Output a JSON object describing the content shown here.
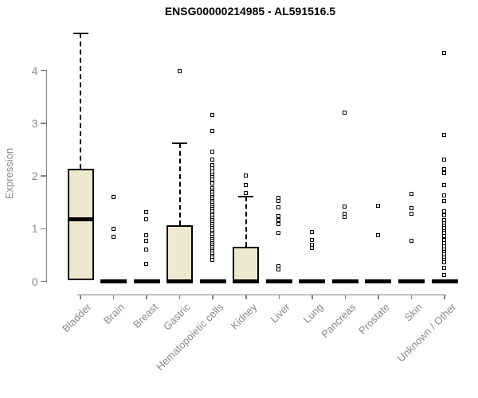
{
  "chart_data": {
    "type": "boxplot",
    "title": "ENSG00000214985 - AL591516.5",
    "ylabel": "Expression",
    "xlabel": "",
    "ylim": [
      0,
      4.75
    ],
    "yticks": [
      0,
      1,
      2,
      3,
      4
    ],
    "grid": false,
    "legend": "none",
    "colors": {
      "box_fill": "#EDE8D0",
      "box_border": "#000000",
      "axis": "#808080",
      "tick_text": "#8a8a8a",
      "title_text": "#000000",
      "outlier_border": "#000000",
      "outlier_fill": "#ffffff"
    },
    "categories": [
      "Bladder",
      "Brain",
      "Breast",
      "Gastric",
      "Hematopoietic cells",
      "Kidney",
      "Liver",
      "Lung",
      "Pancreas",
      "Prostate",
      "Skin",
      "Unknown / Other"
    ],
    "boxes": [
      {
        "label": "Bladder",
        "q1": 0.02,
        "median": 1.18,
        "q3": 2.13,
        "whisker_low": 0.02,
        "whisker_high": 4.7,
        "outliers": []
      },
      {
        "label": "Brain",
        "q1": 0,
        "median": 0,
        "q3": 0,
        "whisker_low": 0,
        "whisker_high": 0,
        "outliers": [
          1.59,
          0.99,
          0.84
        ]
      },
      {
        "label": "Breast",
        "q1": 0,
        "median": 0,
        "q3": 0,
        "whisker_low": 0,
        "whisker_high": 0,
        "outliers": [
          1.31,
          1.17,
          0.87,
          0.76,
          0.6,
          0.32
        ]
      },
      {
        "label": "Gastric",
        "q1": 0,
        "median": 0.02,
        "q3": 1.06,
        "whisker_low": 0,
        "whisker_high": 2.62,
        "outliers": [
          3.97
        ]
      },
      {
        "label": "Hematopoietic cells",
        "q1": 0,
        "median": 0,
        "q3": 0,
        "whisker_low": 0,
        "whisker_high": 0,
        "outliers": [
          3.15,
          2.85,
          2.45,
          2.3,
          2.2,
          2.14,
          2.08,
          2.02,
          1.97,
          1.92,
          1.85,
          1.76,
          1.72,
          1.68,
          1.64,
          1.6,
          1.56,
          1.52,
          1.48,
          1.44,
          1.4,
          1.36,
          1.32,
          1.28,
          1.24,
          1.2,
          1.16,
          1.12,
          1.08,
          1.04,
          1.0,
          0.96,
          0.92,
          0.88,
          0.84,
          0.8,
          0.76,
          0.72,
          0.68,
          0.64,
          0.6,
          0.56,
          0.52,
          0.48,
          0.44,
          0.4
        ]
      },
      {
        "label": "Kidney",
        "q1": 0,
        "median": 0.02,
        "q3": 0.66,
        "whisker_low": 0,
        "whisker_high": 1.61,
        "outliers": [
          2.0,
          1.82,
          1.67
        ]
      },
      {
        "label": "Liver",
        "q1": 0,
        "median": 0,
        "q3": 0,
        "whisker_low": 0,
        "whisker_high": 0,
        "outliers": [
          1.58,
          1.52,
          1.4,
          1.23,
          1.15,
          1.08,
          0.91,
          0.28,
          0.22
        ]
      },
      {
        "label": "Lung",
        "q1": 0,
        "median": 0,
        "q3": 0,
        "whisker_low": 0,
        "whisker_high": 0,
        "outliers": [
          0.93,
          0.78,
          0.68,
          0.62
        ]
      },
      {
        "label": "Pancreas",
        "q1": 0,
        "median": 0,
        "q3": 0,
        "whisker_low": 0,
        "whisker_high": 0,
        "outliers": [
          3.19,
          1.41,
          1.28,
          1.22
        ]
      },
      {
        "label": "Prostate",
        "q1": 0,
        "median": 0,
        "q3": 0,
        "whisker_low": 0,
        "whisker_high": 0,
        "outliers": [
          1.43,
          0.87
        ]
      },
      {
        "label": "Skin",
        "q1": 0,
        "median": 0,
        "q3": 0,
        "whisker_low": 0,
        "whisker_high": 0,
        "outliers": [
          1.65,
          1.38,
          1.28,
          0.76
        ]
      },
      {
        "label": "Unknown / Other",
        "q1": 0,
        "median": 0,
        "q3": 0,
        "whisker_low": 0,
        "whisker_high": 0,
        "outliers": [
          4.33,
          2.77,
          2.3,
          2.12,
          2.05,
          1.82,
          1.62,
          1.52,
          1.32,
          1.25,
          1.15,
          1.1,
          1.05,
          1.0,
          0.95,
          0.91,
          0.85,
          0.78,
          0.72,
          0.66,
          0.6,
          0.55,
          0.5,
          0.45,
          0.4,
          0.35,
          0.25,
          0.11
        ]
      }
    ]
  }
}
